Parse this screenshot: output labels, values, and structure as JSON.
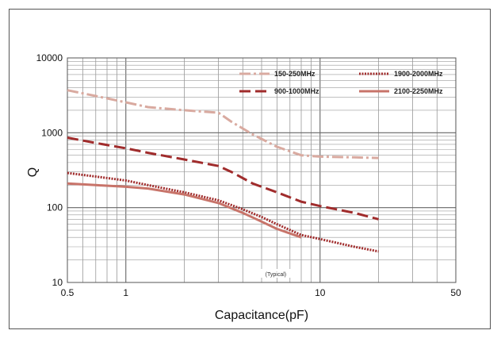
{
  "chart_data": {
    "type": "line",
    "xlabel": "Capacitance(pF)",
    "ylabel": "Q",
    "x_scale": "log",
    "y_scale": "log",
    "xlim": [
      0.5,
      50
    ],
    "ylim": [
      10,
      10000
    ],
    "x_tick_labels": [
      "0.5",
      "1",
      "10",
      "50"
    ],
    "y_tick_labels": [
      "10",
      "100",
      "1000",
      "10000"
    ],
    "grid": true,
    "legend_position": "top-right",
    "annotation": "(Typical)",
    "series": [
      {
        "name": "150-250MHz",
        "color": "#d9aaa0",
        "style": "dashdot",
        "x": [
          0.5,
          0.7,
          1.0,
          1.3,
          2.0,
          3.0,
          3.5,
          4.5,
          6.0,
          8.0,
          10.0,
          15.0,
          20.0
        ],
        "y": [
          3700,
          3100,
          2550,
          2200,
          2000,
          1850,
          1400,
          950,
          650,
          500,
          480,
          470,
          460
        ]
      },
      {
        "name": "1900-2000MHz",
        "color": "#a02c2c",
        "style": "dotted",
        "x": [
          0.5,
          0.7,
          1.0,
          1.3,
          2.0,
          3.0,
          4.0,
          5.0,
          6.0,
          8.0,
          10.0,
          15.0,
          20.0
        ],
        "y": [
          290,
          260,
          230,
          200,
          160,
          125,
          95,
          75,
          60,
          43,
          38,
          30,
          26
        ]
      },
      {
        "name": "900-1000MHz",
        "color": "#a02c2c",
        "style": "dashed",
        "x": [
          0.5,
          0.7,
          1.0,
          1.3,
          2.0,
          3.0,
          3.5,
          4.5,
          6.0,
          8.0,
          10.0,
          15.0,
          20.0
        ],
        "y": [
          860,
          730,
          620,
          540,
          440,
          360,
          300,
          210,
          160,
          120,
          105,
          85,
          70
        ]
      },
      {
        "name": "2100-2250MHz",
        "color": "#c8746a",
        "style": "solid",
        "x": [
          0.5,
          0.7,
          1.0,
          1.3,
          2.0,
          3.0,
          4.0,
          5.0,
          6.0,
          8.0
        ],
        "y": [
          210,
          200,
          190,
          180,
          150,
          115,
          85,
          65,
          52,
          40
        ]
      }
    ]
  }
}
